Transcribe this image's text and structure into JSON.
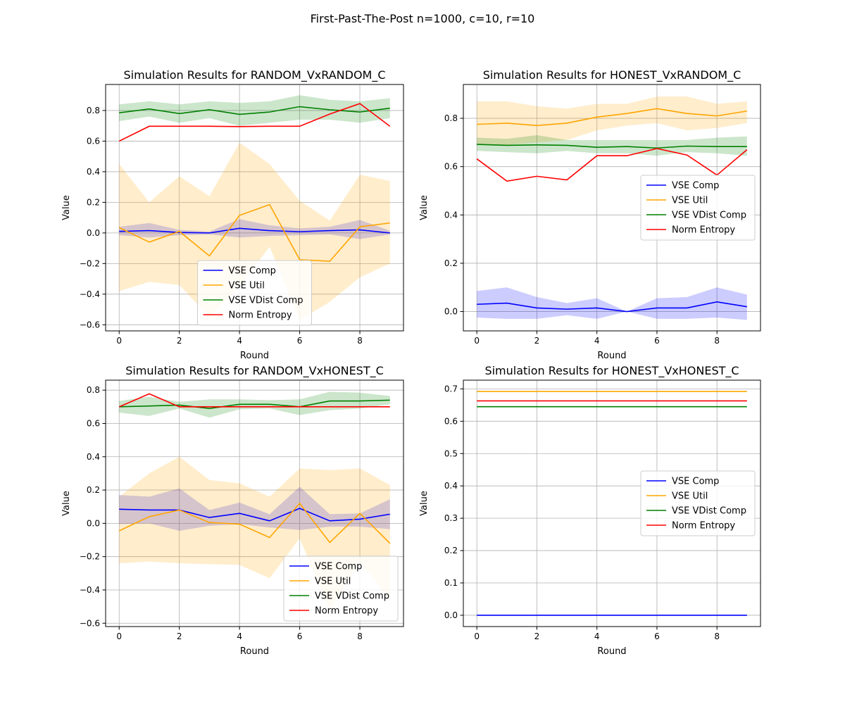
{
  "figure": {
    "suptitle": "First-Past-The-Post n=1000, c=10, r=10"
  },
  "series_colors": {
    "VSE Comp": "#0000ff",
    "VSE Util": "#ffa500",
    "VSE VDist Comp": "#008000",
    "Norm Entropy": "#ff0000"
  },
  "chart_data": [
    {
      "type": "line",
      "title": "Simulation Results for RANDOM_VxRANDOM_C",
      "xlabel": "Round",
      "ylabel": "Value",
      "x": [
        0,
        1,
        2,
        3,
        4,
        5,
        6,
        7,
        8,
        9
      ],
      "xticks": [
        0,
        2,
        4,
        6,
        8
      ],
      "xlim": [
        -0.45,
        9.45
      ],
      "ylim": [
        -0.64,
        0.97
      ],
      "yticks": [
        -0.6,
        -0.4,
        -0.2,
        0.0,
        0.2,
        0.4,
        0.6,
        0.8
      ],
      "ytick_labels": [
        "−0.6",
        "−0.4",
        "−0.2",
        "0.0",
        "0.2",
        "0.4",
        "0.6",
        "0.8"
      ],
      "grid": true,
      "legend": {
        "position": "bottom-center"
      },
      "series": [
        {
          "name": "VSE Comp",
          "values": [
            0.01,
            0.015,
            0.003,
            0.0,
            0.03,
            0.015,
            0.008,
            0.015,
            0.02,
            0.0
          ],
          "band_lower": [
            -0.015,
            -0.03,
            -0.015,
            -0.01,
            -0.03,
            -0.02,
            -0.015,
            -0.01,
            -0.04,
            -0.01
          ],
          "band_upper": [
            0.04,
            0.065,
            0.02,
            0.01,
            0.09,
            0.05,
            0.03,
            0.04,
            0.085,
            0.015
          ]
        },
        {
          "name": "VSE Util",
          "values": [
            0.035,
            -0.06,
            0.01,
            -0.15,
            0.115,
            0.185,
            -0.175,
            -0.185,
            0.04,
            0.065
          ],
          "band_lower": [
            -0.38,
            -0.32,
            -0.34,
            -0.55,
            -0.35,
            -0.09,
            -0.57,
            -0.45,
            -0.29,
            -0.2
          ],
          "band_upper": [
            0.45,
            0.2,
            0.37,
            0.24,
            0.59,
            0.45,
            0.21,
            0.08,
            0.38,
            0.34
          ]
        },
        {
          "name": "VSE VDist Comp",
          "values": [
            0.785,
            0.81,
            0.78,
            0.805,
            0.775,
            0.79,
            0.825,
            0.805,
            0.79,
            0.815
          ],
          "band_lower": [
            0.73,
            0.76,
            0.72,
            0.75,
            0.7,
            0.72,
            0.74,
            0.74,
            0.72,
            0.75
          ],
          "band_upper": [
            0.84,
            0.86,
            0.84,
            0.86,
            0.85,
            0.86,
            0.9,
            0.87,
            0.86,
            0.88
          ]
        },
        {
          "name": "Norm Entropy",
          "values": [
            0.6,
            0.697,
            0.697,
            0.697,
            0.695,
            0.697,
            0.697,
            0.777,
            0.845,
            0.697
          ]
        }
      ]
    },
    {
      "type": "line",
      "title": "Simulation Results for HONEST_VxRANDOM_C",
      "xlabel": "Round",
      "ylabel": "Value",
      "x": [
        0,
        1,
        2,
        3,
        4,
        5,
        6,
        7,
        8,
        9
      ],
      "xticks": [
        0,
        2,
        4,
        6,
        8
      ],
      "xlim": [
        -0.45,
        9.45
      ],
      "ylim": [
        -0.08,
        0.94
      ],
      "yticks": [
        0.0,
        0.2,
        0.4,
        0.6,
        0.8
      ],
      "ytick_labels": [
        "0.0",
        "0.2",
        "0.4",
        "0.6",
        "0.8"
      ],
      "grid": true,
      "legend": {
        "position": "center-right"
      },
      "series": [
        {
          "name": "VSE Comp",
          "values": [
            0.03,
            0.035,
            0.015,
            0.01,
            0.015,
            0.0,
            0.015,
            0.015,
            0.04,
            0.02
          ],
          "band_lower": [
            -0.025,
            -0.03,
            -0.03,
            -0.015,
            -0.03,
            0.0,
            -0.03,
            -0.03,
            -0.025,
            -0.035
          ],
          "band_upper": [
            0.085,
            0.1,
            0.06,
            0.035,
            0.055,
            0.0,
            0.055,
            0.06,
            0.1,
            0.07
          ]
        },
        {
          "name": "VSE Util",
          "values": [
            0.775,
            0.78,
            0.77,
            0.78,
            0.805,
            0.82,
            0.84,
            0.82,
            0.81,
            0.83
          ],
          "band_lower": [
            0.69,
            0.69,
            0.7,
            0.71,
            0.75,
            0.77,
            0.78,
            0.75,
            0.76,
            0.78
          ],
          "band_upper": [
            0.87,
            0.87,
            0.85,
            0.84,
            0.86,
            0.86,
            0.89,
            0.89,
            0.86,
            0.87
          ]
        },
        {
          "name": "VSE VDist Comp",
          "values": [
            0.692,
            0.688,
            0.69,
            0.688,
            0.68,
            0.683,
            0.677,
            0.685,
            0.683,
            0.683
          ],
          "band_lower": [
            0.665,
            0.66,
            0.655,
            0.665,
            0.655,
            0.655,
            0.645,
            0.66,
            0.655,
            0.645
          ],
          "band_upper": [
            0.72,
            0.715,
            0.73,
            0.71,
            0.71,
            0.71,
            0.71,
            0.71,
            0.72,
            0.725
          ]
        },
        {
          "name": "Norm Entropy",
          "values": [
            0.632,
            0.54,
            0.56,
            0.545,
            0.645,
            0.645,
            0.675,
            0.648,
            0.565,
            0.67
          ]
        }
      ]
    },
    {
      "type": "line",
      "title": "Simulation Results for RANDOM_VxHONEST_C",
      "xlabel": "Round",
      "ylabel": "Value",
      "x": [
        0,
        1,
        2,
        3,
        4,
        5,
        6,
        7,
        8,
        9
      ],
      "xticks": [
        0,
        2,
        4,
        6,
        8
      ],
      "xlim": [
        -0.45,
        9.45
      ],
      "ylim": [
        -0.62,
        0.86
      ],
      "yticks": [
        -0.6,
        -0.4,
        -0.2,
        0.0,
        0.2,
        0.4,
        0.6,
        0.8
      ],
      "ytick_labels": [
        "−0.6",
        "−0.4",
        "−0.2",
        "0.0",
        "0.2",
        "0.4",
        "0.6",
        "0.8"
      ],
      "grid": true,
      "legend": {
        "position": "bottom-right"
      },
      "series": [
        {
          "name": "VSE Comp",
          "values": [
            0.085,
            0.08,
            0.08,
            0.035,
            0.06,
            0.015,
            0.09,
            0.015,
            0.025,
            0.055
          ],
          "band_lower": [
            -0.005,
            0.0,
            -0.045,
            -0.015,
            -0.005,
            -0.025,
            -0.04,
            -0.02,
            -0.02,
            -0.035
          ],
          "band_upper": [
            0.17,
            0.16,
            0.21,
            0.08,
            0.125,
            0.055,
            0.22,
            0.055,
            0.06,
            0.145
          ]
        },
        {
          "name": "VSE Util",
          "values": [
            -0.045,
            0.04,
            0.08,
            0.005,
            -0.005,
            -0.085,
            0.12,
            -0.115,
            0.06,
            -0.12
          ],
          "band_lower": [
            -0.24,
            -0.23,
            -0.24,
            -0.245,
            -0.25,
            -0.33,
            -0.09,
            -0.52,
            -0.23,
            -0.46
          ],
          "band_upper": [
            0.16,
            0.3,
            0.4,
            0.26,
            0.24,
            0.16,
            0.33,
            0.32,
            0.33,
            0.23
          ]
        },
        {
          "name": "VSE VDist Comp",
          "values": [
            0.7,
            0.705,
            0.71,
            0.69,
            0.715,
            0.715,
            0.7,
            0.735,
            0.735,
            0.74
          ],
          "band_lower": [
            0.665,
            0.645,
            0.69,
            0.635,
            0.685,
            0.69,
            0.65,
            0.68,
            0.69,
            0.715
          ],
          "band_upper": [
            0.735,
            0.76,
            0.73,
            0.745,
            0.745,
            0.74,
            0.745,
            0.79,
            0.785,
            0.765
          ]
        },
        {
          "name": "Norm Entropy",
          "values": [
            0.7,
            0.778,
            0.7,
            0.7,
            0.7,
            0.7,
            0.7,
            0.7,
            0.7,
            0.7
          ]
        }
      ]
    },
    {
      "type": "line",
      "title": "Simulation Results for HONEST_VxHONEST_C",
      "xlabel": "Round",
      "ylabel": "Value",
      "x": [
        0,
        1,
        2,
        3,
        4,
        5,
        6,
        7,
        8,
        9
      ],
      "xticks": [
        0,
        2,
        4,
        6,
        8
      ],
      "xlim": [
        -0.45,
        9.45
      ],
      "ylim": [
        -0.035,
        0.727
      ],
      "yticks": [
        0.0,
        0.1,
        0.2,
        0.3,
        0.4,
        0.5,
        0.6,
        0.7
      ],
      "ytick_labels": [
        "0.0",
        "0.1",
        "0.2",
        "0.3",
        "0.4",
        "0.5",
        "0.6",
        "0.7"
      ],
      "grid": true,
      "legend": {
        "position": "center-right"
      },
      "series": [
        {
          "name": "VSE Comp",
          "values": [
            0.0,
            0.0,
            0.0,
            0.0,
            0.0,
            0.0,
            0.0,
            0.0,
            0.0,
            0.0
          ]
        },
        {
          "name": "VSE Util",
          "values": [
            0.692,
            0.692,
            0.692,
            0.692,
            0.692,
            0.692,
            0.692,
            0.692,
            0.692,
            0.692
          ]
        },
        {
          "name": "VSE VDist Comp",
          "values": [
            0.645,
            0.645,
            0.645,
            0.645,
            0.645,
            0.645,
            0.645,
            0.645,
            0.645,
            0.645
          ]
        },
        {
          "name": "Norm Entropy",
          "values": [
            0.663,
            0.663,
            0.663,
            0.663,
            0.663,
            0.663,
            0.663,
            0.663,
            0.663,
            0.663
          ]
        }
      ]
    }
  ]
}
